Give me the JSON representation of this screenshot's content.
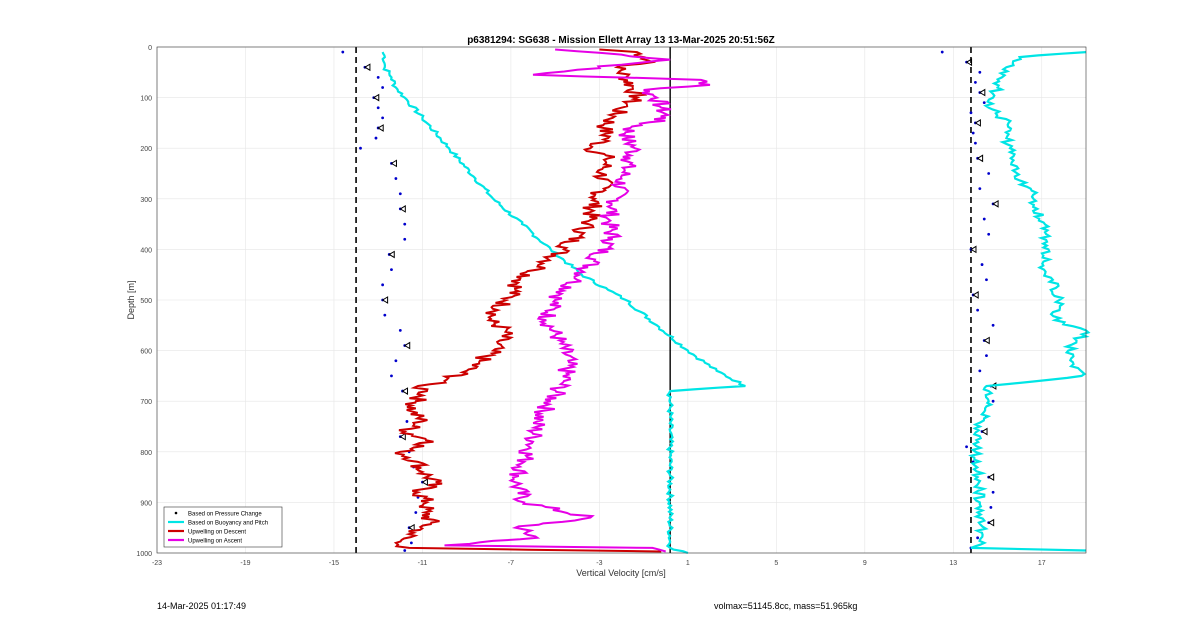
{
  "chart_data": {
    "type": "line",
    "title": "p6381294: SG638 - Mission Ellett Array 13 13-Mar-2025 20:51:56Z",
    "xlabel": "Vertical Velocity [cm/s]",
    "ylabel": "Depth [m]",
    "xlim": [
      -23,
      19
    ],
    "ylim": [
      1000,
      0
    ],
    "y_reversed": true,
    "xticks": [
      -23,
      -19,
      -15,
      -11,
      -7,
      -3,
      1,
      5,
      9,
      13,
      17
    ],
    "yticks": [
      0,
      100,
      200,
      300,
      400,
      500,
      600,
      700,
      800,
      900,
      1000
    ],
    "grid": true,
    "legend_position": "bottom-left",
    "reference_lines": {
      "dashed": [
        -14,
        13.8
      ],
      "solid": 0.2
    },
    "series": [
      {
        "name": "Based on Pressure Change",
        "style": "dots",
        "color": "#0000cc",
        "descent": {
          "depth": [
            10,
            40,
            60,
            80,
            100,
            120,
            140,
            160,
            180,
            200,
            230,
            260,
            290,
            320,
            350,
            380,
            410,
            440,
            470,
            500,
            530,
            560,
            590,
            620,
            650,
            680,
            710,
            740,
            770,
            800,
            830,
            860,
            890,
            920,
            950,
            980,
            995
          ],
          "x": [
            -14.6,
            -13.6,
            -13,
            -12.8,
            -13.2,
            -13,
            -12.8,
            -13,
            -13.1,
            -13.8,
            -12.4,
            -12.2,
            -12,
            -12,
            -11.8,
            -11.8,
            -12.5,
            -12.4,
            -12.8,
            -12.8,
            -12.7,
            -12,
            -11.8,
            -12.2,
            -12.4,
            -11.9,
            -11.6,
            -11.7,
            -12,
            -11.6,
            -11.4,
            -11,
            -11.2,
            -11.3,
            -11.6,
            -11.5,
            -11.8
          ]
        },
        "ascent": {
          "depth": [
            10,
            30,
            50,
            70,
            90,
            110,
            130,
            150,
            170,
            190,
            220,
            250,
            280,
            310,
            340,
            370,
            400,
            430,
            460,
            490,
            520,
            550,
            580,
            610,
            640,
            670,
            700,
            730,
            760,
            790,
            820,
            850,
            880,
            910,
            940,
            970,
            990
          ],
          "x": [
            12.5,
            13.6,
            14.2,
            14,
            14.2,
            14.4,
            13.8,
            14,
            13.9,
            14,
            14.1,
            14.6,
            14.2,
            14.8,
            14.4,
            14.6,
            13.8,
            14.3,
            14.5,
            13.9,
            14.1,
            14.8,
            14.4,
            14.5,
            14.2,
            14.7,
            14.8,
            14.5,
            14.3,
            13.6,
            13.9,
            14.6,
            14.8,
            14.7,
            14.6,
            14.1,
            13.8
          ]
        }
      },
      {
        "name": "Based on Buoyancy and Pitch",
        "style": "line",
        "color": "#00e5e5",
        "descent": {
          "depth": [
            10,
            20,
            40,
            60,
            80,
            100,
            140,
            200,
            260,
            300,
            350,
            400,
            450,
            480,
            500,
            550,
            600,
            640,
            670,
            680,
            990,
            1000
          ],
          "x": [
            -12.8,
            -12.7,
            -12.7,
            -12.4,
            -12.2,
            -11.8,
            -11,
            -9.8,
            -8.6,
            -7.8,
            -6.5,
            -5.2,
            -3.8,
            -2.6,
            -1.8,
            -0.4,
            1,
            2.3,
            3.6,
            0.2,
            0.2,
            1
          ]
        },
        "ascent": {
          "depth": [
            995,
            990,
            980,
            960,
            900,
            850,
            800,
            750,
            710,
            700,
            680,
            670,
            650,
            600,
            560,
            540,
            500,
            460,
            440,
            400,
            370,
            320,
            280,
            260,
            220,
            180,
            150,
            120,
            100,
            80,
            60,
            40,
            20,
            10
          ],
          "x": [
            19,
            13.8,
            14.4,
            14.3,
            14.2,
            14.1,
            14,
            14.2,
            14.5,
            14.6,
            14.6,
            14.5,
            18.8,
            18.2,
            19,
            17.6,
            17.8,
            17.5,
            17.1,
            17.3,
            17.2,
            16.8,
            16.5,
            15.8,
            15.6,
            15.4,
            15.5,
            14.6,
            14.8,
            15,
            15.2,
            15.4,
            16,
            19
          ]
        }
      },
      {
        "name": "Upwelling on Descent",
        "style": "line",
        "color": "#cc0000",
        "depth": [
          5,
          10,
          20,
          30,
          40,
          60,
          80,
          100,
          120,
          140,
          160,
          180,
          200,
          220,
          250,
          280,
          300,
          350,
          400,
          440,
          460,
          480,
          500,
          520,
          540,
          560,
          580,
          600,
          620,
          640,
          660,
          670,
          680,
          700,
          720,
          740,
          760,
          780,
          800,
          820,
          840,
          860,
          880,
          900,
          920,
          940,
          960,
          980,
          990,
          997
        ],
        "x": [
          -3,
          -1.3,
          -1,
          -0.6,
          -2.2,
          -1.8,
          -1.5,
          -1.3,
          -2,
          -2.4,
          -2.8,
          -2.6,
          -3.4,
          -2.6,
          -2.9,
          -2.8,
          -3.2,
          -3.5,
          -4.6,
          -5.8,
          -6.6,
          -6.8,
          -7.2,
          -7.6,
          -8,
          -7.2,
          -7.5,
          -7.8,
          -8.4,
          -9,
          -10,
          -11.2,
          -10.8,
          -11.3,
          -11.5,
          -11,
          -11.8,
          -10.5,
          -12,
          -11.2,
          -11,
          -10.4,
          -11.2,
          -10.8,
          -10.9,
          -10.6,
          -11.4,
          -12.2,
          -11.6,
          -0.2
        ]
      },
      {
        "name": "Upwelling on Ascent",
        "style": "line",
        "color": "#e600e6",
        "depth": [
          5,
          15,
          25,
          35,
          45,
          55,
          65,
          75,
          85,
          100,
          120,
          140,
          160,
          180,
          200,
          220,
          260,
          300,
          340,
          380,
          420,
          460,
          500,
          540,
          580,
          620,
          660,
          700,
          740,
          780,
          820,
          860,
          900,
          930,
          950,
          970,
          985,
          990,
          997
        ],
        "x": [
          -5,
          -2,
          0.2,
          -2,
          -4,
          -6,
          1.6,
          2,
          -1,
          -0.4,
          -0.2,
          0,
          -1.6,
          -1.8,
          -1.4,
          -1.6,
          -2,
          -2.2,
          -2.6,
          -2.4,
          -3.2,
          -4,
          -5,
          -5.4,
          -4.8,
          -4.4,
          -4.6,
          -5.2,
          -5.8,
          -6,
          -6.4,
          -6.8,
          -6.4,
          -3.4,
          -6.8,
          -5.8,
          -10,
          -0.6,
          0
        ]
      }
    ]
  },
  "footer": {
    "date": "14-Mar-2025 01:17:49",
    "volmax": "volmax=51145.8cc, mass=51.965kg"
  }
}
